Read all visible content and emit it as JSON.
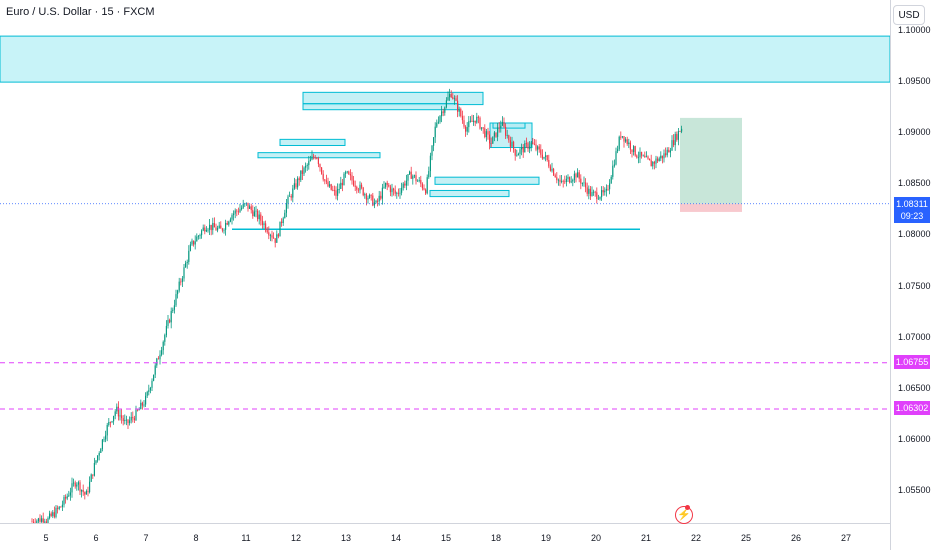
{
  "header": {
    "title": "Euro / U.S. Dollar · 15 · FXCM",
    "currency_button": "USD"
  },
  "chart_data": {
    "type": "candlestick",
    "title": "Euro / U.S. Dollar · 15 · FXCM",
    "symbol": "EURUSD",
    "timeframe": "15",
    "source": "FXCM",
    "currency": "USD",
    "y_axis": {
      "range": [
        1.052,
        1.1005
      ],
      "ticks": [
        "1.10000",
        "1.09500",
        "1.09000",
        "1.08500",
        "1.08000",
        "1.07500",
        "1.07000",
        "1.06500",
        "1.06000",
        "1.05500"
      ]
    },
    "x_axis": {
      "ticks": [
        "5",
        "6",
        "7",
        "8",
        "11",
        "12",
        "13",
        "14",
        "15",
        "18",
        "19",
        "20",
        "21",
        "22",
        "25",
        "26",
        "27"
      ]
    },
    "last_price": {
      "value": "1.08311",
      "countdown": "09:23"
    },
    "price_path": [
      [
        0.0,
        1.052
      ],
      [
        0.3,
        1.0535
      ],
      [
        0.6,
        1.056
      ],
      [
        0.8,
        1.0545
      ],
      [
        1.0,
        1.058
      ],
      [
        1.2,
        1.061
      ],
      [
        1.4,
        1.063
      ],
      [
        1.6,
        1.0615
      ],
      [
        1.8,
        1.0625
      ],
      [
        2.0,
        1.064
      ],
      [
        2.3,
        1.069
      ],
      [
        2.6,
        1.074
      ],
      [
        2.9,
        1.079
      ],
      [
        3.2,
        1.081
      ],
      [
        3.5,
        1.0805
      ],
      [
        3.7,
        1.082
      ],
      [
        4.0,
        1.083
      ],
      [
        4.3,
        1.0815
      ],
      [
        4.6,
        1.0795
      ],
      [
        4.8,
        1.083
      ],
      [
        5.1,
        1.086
      ],
      [
        5.4,
        1.088
      ],
      [
        5.6,
        1.085
      ],
      [
        5.8,
        1.084
      ],
      [
        6.0,
        1.086
      ],
      [
        6.3,
        1.0845
      ],
      [
        6.6,
        1.083
      ],
      [
        6.8,
        1.085
      ],
      [
        7.0,
        1.084
      ],
      [
        7.3,
        1.086
      ],
      [
        7.6,
        1.0845
      ],
      [
        7.8,
        1.091
      ],
      [
        8.1,
        1.094
      ],
      [
        8.4,
        1.0905
      ],
      [
        8.6,
        1.0915
      ],
      [
        8.9,
        1.089
      ],
      [
        9.1,
        1.091
      ],
      [
        9.4,
        1.088
      ],
      [
        9.7,
        1.089
      ],
      [
        10.0,
        1.0875
      ],
      [
        10.3,
        1.085
      ],
      [
        10.6,
        1.086
      ],
      [
        10.9,
        1.084
      ],
      [
        11.2,
        1.084
      ],
      [
        11.5,
        1.09
      ],
      [
        11.8,
        1.088
      ],
      [
        12.1,
        1.087
      ],
      [
        12.4,
        1.088
      ],
      [
        12.7,
        1.0905
      ],
      [
        13.0,
        1.0915
      ],
      [
        13.3,
        1.0905
      ],
      [
        13.5,
        1.09
      ],
      [
        13.8,
        1.0945
      ],
      [
        14.1,
        1.094
      ],
      [
        14.4,
        1.093
      ],
      [
        14.6,
        1.0935
      ],
      [
        14.8,
        1.0905
      ],
      [
        15.1,
        1.089
      ],
      [
        15.4,
        1.0885
      ],
      [
        15.6,
        1.0895
      ],
      [
        15.8,
        1.091
      ],
      [
        16.1,
        1.0885
      ],
      [
        16.4,
        1.087
      ],
      [
        16.6,
        1.084
      ],
      [
        16.8,
        1.0825
      ],
      [
        17.0,
        1.0845
      ],
      [
        17.3,
        1.085
      ],
      [
        17.5,
        1.084
      ],
      [
        17.7,
        1.083
      ]
    ],
    "zones": [
      {
        "kind": "supply",
        "price_range": [
          1.095,
          1.0995
        ]
      },
      {
        "kind": "long-position-target",
        "price_range": [
          1.0831,
          1.0915
        ]
      },
      {
        "kind": "long-position-stop",
        "price_range": [
          1.0823,
          1.0831
        ]
      }
    ],
    "horizontal_levels": [
      {
        "price": 1.06755,
        "label": "1.06755",
        "style": "dashed"
      },
      {
        "price": 1.06302,
        "label": "1.06302",
        "style": "dashed"
      },
      {
        "price": 1.0831,
        "style": "dotted"
      }
    ],
    "colors": {
      "up": "#089981",
      "down": "#f23645",
      "zone": "#b2ebf2",
      "zone_border": "#00bcd4",
      "level": "#e040fb",
      "last_price": "#2962ff",
      "target": "#c8e6d9",
      "stop": "#f8c9ce"
    }
  }
}
